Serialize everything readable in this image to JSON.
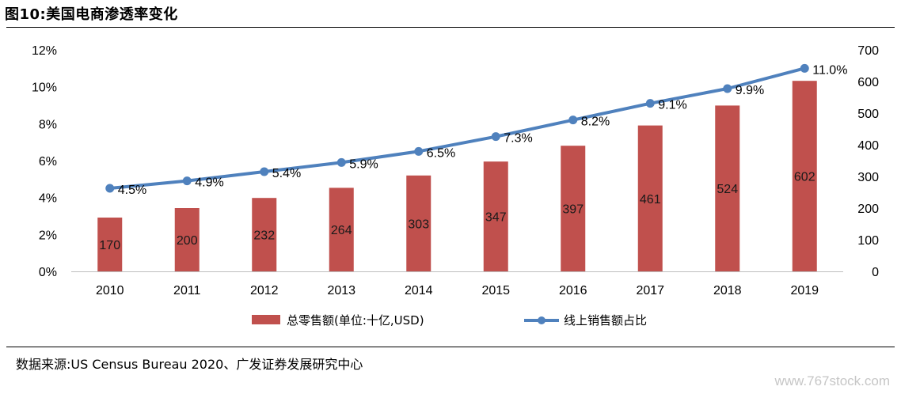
{
  "header": {
    "title": "图10:美国电商渗透率变化"
  },
  "footer": {
    "source": "数据来源:US Census Bureau 2020、广发证券发展研究中心",
    "watermark": "www.767stock.com"
  },
  "chart_data": {
    "type": "bar",
    "categories": [
      "2010",
      "2011",
      "2012",
      "2013",
      "2014",
      "2015",
      "2016",
      "2017",
      "2018",
      "2019"
    ],
    "series": [
      {
        "name": "总零售额(单位:十亿,USD)",
        "kind": "bar",
        "axis": "right",
        "values": [
          170,
          200,
          232,
          264,
          303,
          347,
          397,
          461,
          524,
          602
        ],
        "labels": [
          "170",
          "200",
          "232",
          "264",
          "303",
          "347",
          "397",
          "461",
          "524",
          "602"
        ],
        "color": "#c0504d"
      },
      {
        "name": "线上销售额占比",
        "kind": "line",
        "axis": "left",
        "values": [
          4.5,
          4.9,
          5.4,
          5.9,
          6.5,
          7.3,
          8.2,
          9.1,
          9.9,
          11.0
        ],
        "labels": [
          "4.5%",
          "4.9%",
          "5.4%",
          "5.9%",
          "6.5%",
          "7.3%",
          "8.2%",
          "9.1%",
          "9.9%",
          "11.0%"
        ],
        "color": "#4f81bd"
      }
    ],
    "y_left": {
      "lim": [
        0,
        12
      ],
      "ticks": [
        "0%",
        "2%",
        "4%",
        "6%",
        "8%",
        "10%",
        "12%"
      ]
    },
    "y_right": {
      "lim": [
        0,
        700
      ],
      "ticks": [
        "0",
        "100",
        "200",
        "300",
        "400",
        "500",
        "600",
        "700"
      ]
    },
    "grid": false,
    "legend": "bottom"
  }
}
